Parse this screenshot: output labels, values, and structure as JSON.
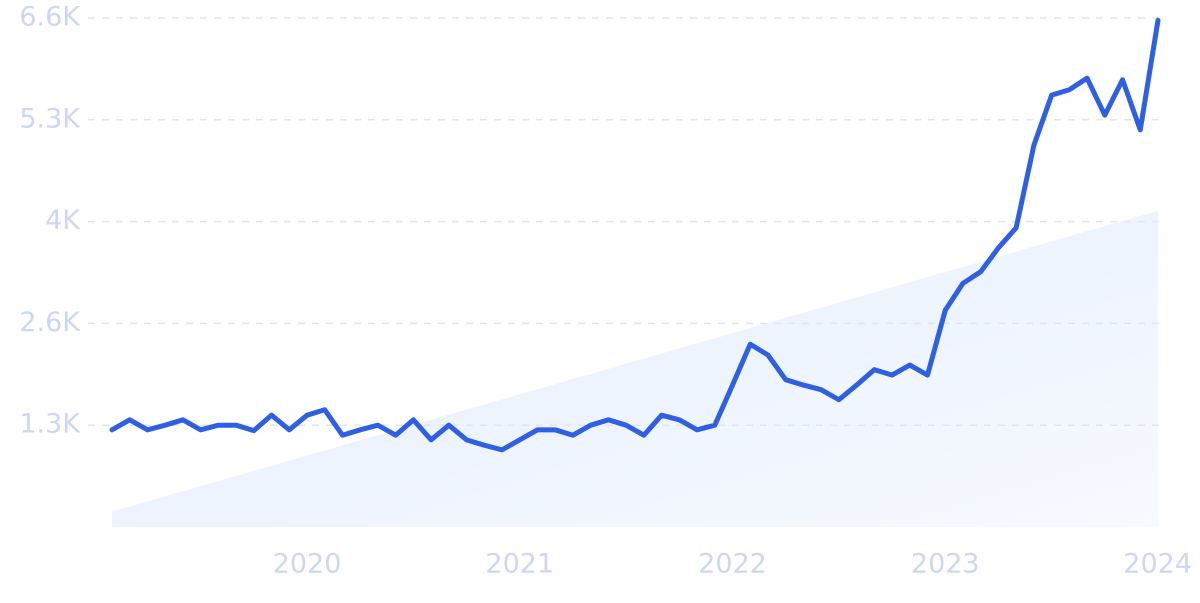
{
  "chart_data": {
    "type": "line",
    "categories": [
      null,
      null,
      null,
      null,
      null,
      null,
      null,
      null,
      null,
      null,
      null,
      "2020",
      null,
      null,
      null,
      null,
      null,
      null,
      null,
      null,
      null,
      null,
      null,
      "2021",
      null,
      null,
      null,
      null,
      null,
      null,
      null,
      null,
      null,
      null,
      null,
      "2022",
      null,
      null,
      null,
      null,
      null,
      null,
      null,
      null,
      null,
      null,
      null,
      "2023",
      null,
      null,
      null,
      null,
      null,
      null,
      null,
      null,
      null,
      null,
      null,
      "2024"
    ],
    "series": [
      {
        "color": "#2f5fe3",
        "values": [
          1260,
          1390,
          1260,
          1320,
          1390,
          1260,
          1320,
          1320,
          1250,
          1450,
          1260,
          1450,
          1520,
          1190,
          1260,
          1320,
          1190,
          1390,
          1130,
          1320,
          1130,
          1060,
          1000,
          1130,
          1260,
          1260,
          1190,
          1320,
          1390,
          1320,
          1190,
          1450,
          1390,
          1260,
          1320,
          1840,
          2370,
          2230,
          1910,
          1840,
          1780,
          1650,
          1840,
          2040,
          1970,
          2100,
          1970,
          2810,
          3160,
          3310,
          3620,
          3880,
          4950,
          5600,
          5670,
          5820,
          5340,
          5800,
          5150,
          6570
        ]
      }
    ],
    "trend": {
      "color": "#e3edfc",
      "values": [
        200,
        4100
      ]
    },
    "ylim": [
      0,
      6600
    ],
    "yticks": [
      {
        "value": 1320,
        "label": "1.3K"
      },
      {
        "value": 2640,
        "label": "2.6K"
      },
      {
        "value": 3960,
        "label": "4K"
      },
      {
        "value": 5280,
        "label": "5.3K"
      },
      {
        "value": 6600,
        "label": "6.6K"
      }
    ],
    "grid": true
  }
}
